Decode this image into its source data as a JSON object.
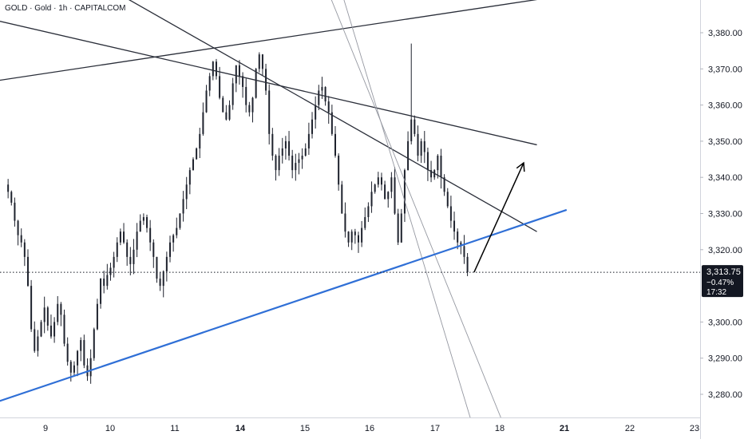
{
  "header": {
    "title": "GOLD · Gold · 1h · CAPITALCOM"
  },
  "colors": {
    "candle": "#1e222d",
    "trendline": "#2a2e39",
    "thin_line": "#9598a1",
    "support": "#2f6fd6",
    "price_badge_bg": "#131722",
    "price_badge_text": "#ffffff",
    "axis_border": "#d1d4dc"
  },
  "price_badge": {
    "price": "3,313.75",
    "change": "−0.47%",
    "countdown": "17:32"
  },
  "chart_data": {
    "type": "candlestick",
    "y_axis_ticks": [
      "3,380.00",
      "3,370.00",
      "3,360.00",
      "3,350.00",
      "3,340.00",
      "3,330.00",
      "3,320.00",
      "3,300.00",
      "3,290.00",
      "3,280.00"
    ],
    "y_axis_tick_values": [
      3380,
      3370,
      3360,
      3350,
      3340,
      3330,
      3320,
      3300,
      3290,
      3280
    ],
    "x_axis_ticks": [
      "9",
      "10",
      "11",
      "14",
      "15",
      "16",
      "17",
      "18",
      "21",
      "22",
      "23"
    ],
    "x_axis_bold": [
      "14",
      "21"
    ],
    "ylim": [
      3270,
      3387
    ],
    "last_price": 3313.75,
    "price_walk": [
      3338,
      3336,
      3333,
      3328,
      3324,
      3322,
      3318,
      3310,
      3298,
      3292,
      3296,
      3300,
      3304,
      3299,
      3296,
      3300,
      3305,
      3302,
      3294,
      3289,
      3286,
      3288,
      3292,
      3295,
      3288,
      3285,
      3290,
      3298,
      3305,
      3312,
      3310,
      3313,
      3315,
      3318,
      3322,
      3325,
      3322,
      3318,
      3316,
      3320,
      3325,
      3328,
      3329,
      3326,
      3322,
      3318,
      3312,
      3310,
      3314,
      3318,
      3322,
      3324,
      3326,
      3330,
      3334,
      3338,
      3342,
      3345,
      3348,
      3352,
      3358,
      3364,
      3368,
      3372,
      3368,
      3362,
      3358,
      3356,
      3360,
      3366,
      3371,
      3368,
      3365,
      3360,
      3358,
      3362,
      3370,
      3374,
      3370,
      3364,
      3352,
      3346,
      3342,
      3346,
      3348,
      3350,
      3346,
      3342,
      3344,
      3345,
      3346,
      3348,
      3352,
      3356,
      3360,
      3364,
      3365,
      3361,
      3358,
      3352,
      3346,
      3338,
      3330,
      3325,
      3322,
      3325,
      3324,
      3322,
      3326,
      3329,
      3332,
      3336,
      3338,
      3340,
      3338,
      3334,
      3336,
      3340,
      3330,
      3322,
      3330,
      3342,
      3350,
      3356,
      3352,
      3346,
      3350,
      3347,
      3342,
      3340,
      3342,
      3346,
      3340,
      3336,
      3332,
      3328,
      3325,
      3322,
      3321,
      3318,
      3313.75
    ],
    "spikes": [
      {
        "index": 123,
        "high": 3377
      }
    ],
    "drawings": {
      "resistance_lines": [
        {
          "from": {
            "bar": -15,
            "price": 3365
          },
          "to": {
            "bar": 167,
            "price": 3390
          }
        },
        {
          "from": {
            "bar": -15,
            "price": 3386
          },
          "to": {
            "bar": 161,
            "price": 3349
          }
        },
        {
          "from": {
            "bar": 34,
            "price": 3391
          },
          "to": {
            "bar": 161,
            "price": 3325
          }
        }
      ],
      "thin_lines": [
        {
          "from": {
            "bar": 98,
            "price": 3391
          },
          "to": {
            "bar": 153,
            "price": 3267
          }
        },
        {
          "from": {
            "bar": 102,
            "price": 3391
          },
          "to": {
            "bar": 143,
            "price": 3267
          }
        }
      ],
      "support_line": {
        "from": {
          "bar": -15,
          "price": 3274
        },
        "to": {
          "bar": 170,
          "price": 3331
        }
      },
      "arrow": {
        "from": {
          "bar": 142,
          "price": 3313.75
        },
        "to": {
          "bar": 157,
          "price": 3344
        }
      }
    }
  }
}
